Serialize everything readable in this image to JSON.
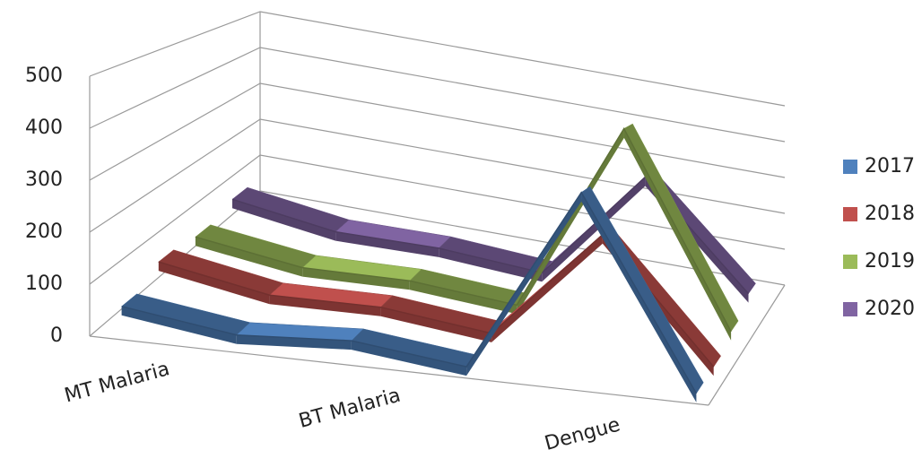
{
  "chart_data": {
    "type": "line3d",
    "categories": [
      "MT Malaria",
      null,
      "BT Malaria",
      null,
      "Dengue",
      null
    ],
    "series": [
      {
        "name": "2017",
        "color": "#4f81bd",
        "values": [
          40,
          10,
          25,
          0,
          370,
          0
        ]
      },
      {
        "name": "2018",
        "color": "#c0504d",
        "values": [
          70,
          30,
          35,
          10,
          250,
          0
        ]
      },
      {
        "name": "2019",
        "color": "#9bbb59",
        "values": [
          60,
          25,
          30,
          10,
          450,
          20
        ]
      },
      {
        "name": "2020",
        "color": "#8064a2",
        "values": [
          80,
          40,
          40,
          20,
          300,
          50
        ]
      }
    ],
    "ylim": [
      0,
      500
    ],
    "yticks": [
      0,
      100,
      200,
      300,
      400,
      500
    ],
    "grid": true,
    "legend": "right"
  }
}
